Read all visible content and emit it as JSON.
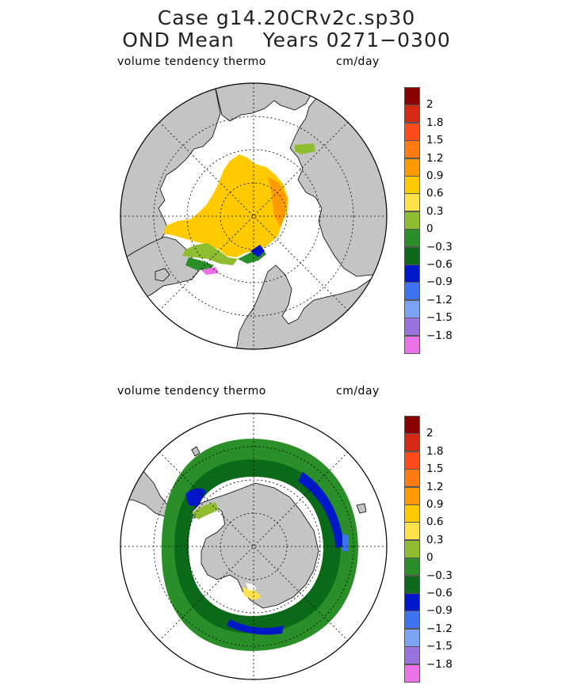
{
  "header": {
    "title_line1": "Case g14.20CRv2c.sp30",
    "title_line2": "OND Mean    Years 0271−0300"
  },
  "panels": [
    {
      "id": "north",
      "hemisphere": "Northern Hemisphere",
      "variable_label": "volume tendency thermo",
      "units_label": "cm/day"
    },
    {
      "id": "south",
      "hemisphere": "Southern Hemisphere",
      "variable_label": "volume tendency thermo",
      "units_label": "cm/day"
    }
  ],
  "legend": {
    "colors": [
      "#8b0000",
      "#d42a13",
      "#ff4a1a",
      "#ff7a10",
      "#ff9b00",
      "#ffcb00",
      "#ffe24a",
      "#8fbd30",
      "#2a8f28",
      "#0b6a1a",
      "#0018c8",
      "#3f72ee",
      "#7aa4f0",
      "#9a72e0",
      "#ea72e8"
    ],
    "labels": [
      "2",
      "1.8",
      "1.5",
      "1.2",
      "0.9",
      "0.6",
      "0.3",
      "0",
      "−0.3",
      "−0.6",
      "−0.9",
      "−1.2",
      "−1.5",
      "−1.8"
    ]
  },
  "colors": {
    "land": "#c4c4c4",
    "ocean": "#ffffff",
    "outline": "#000000"
  }
}
